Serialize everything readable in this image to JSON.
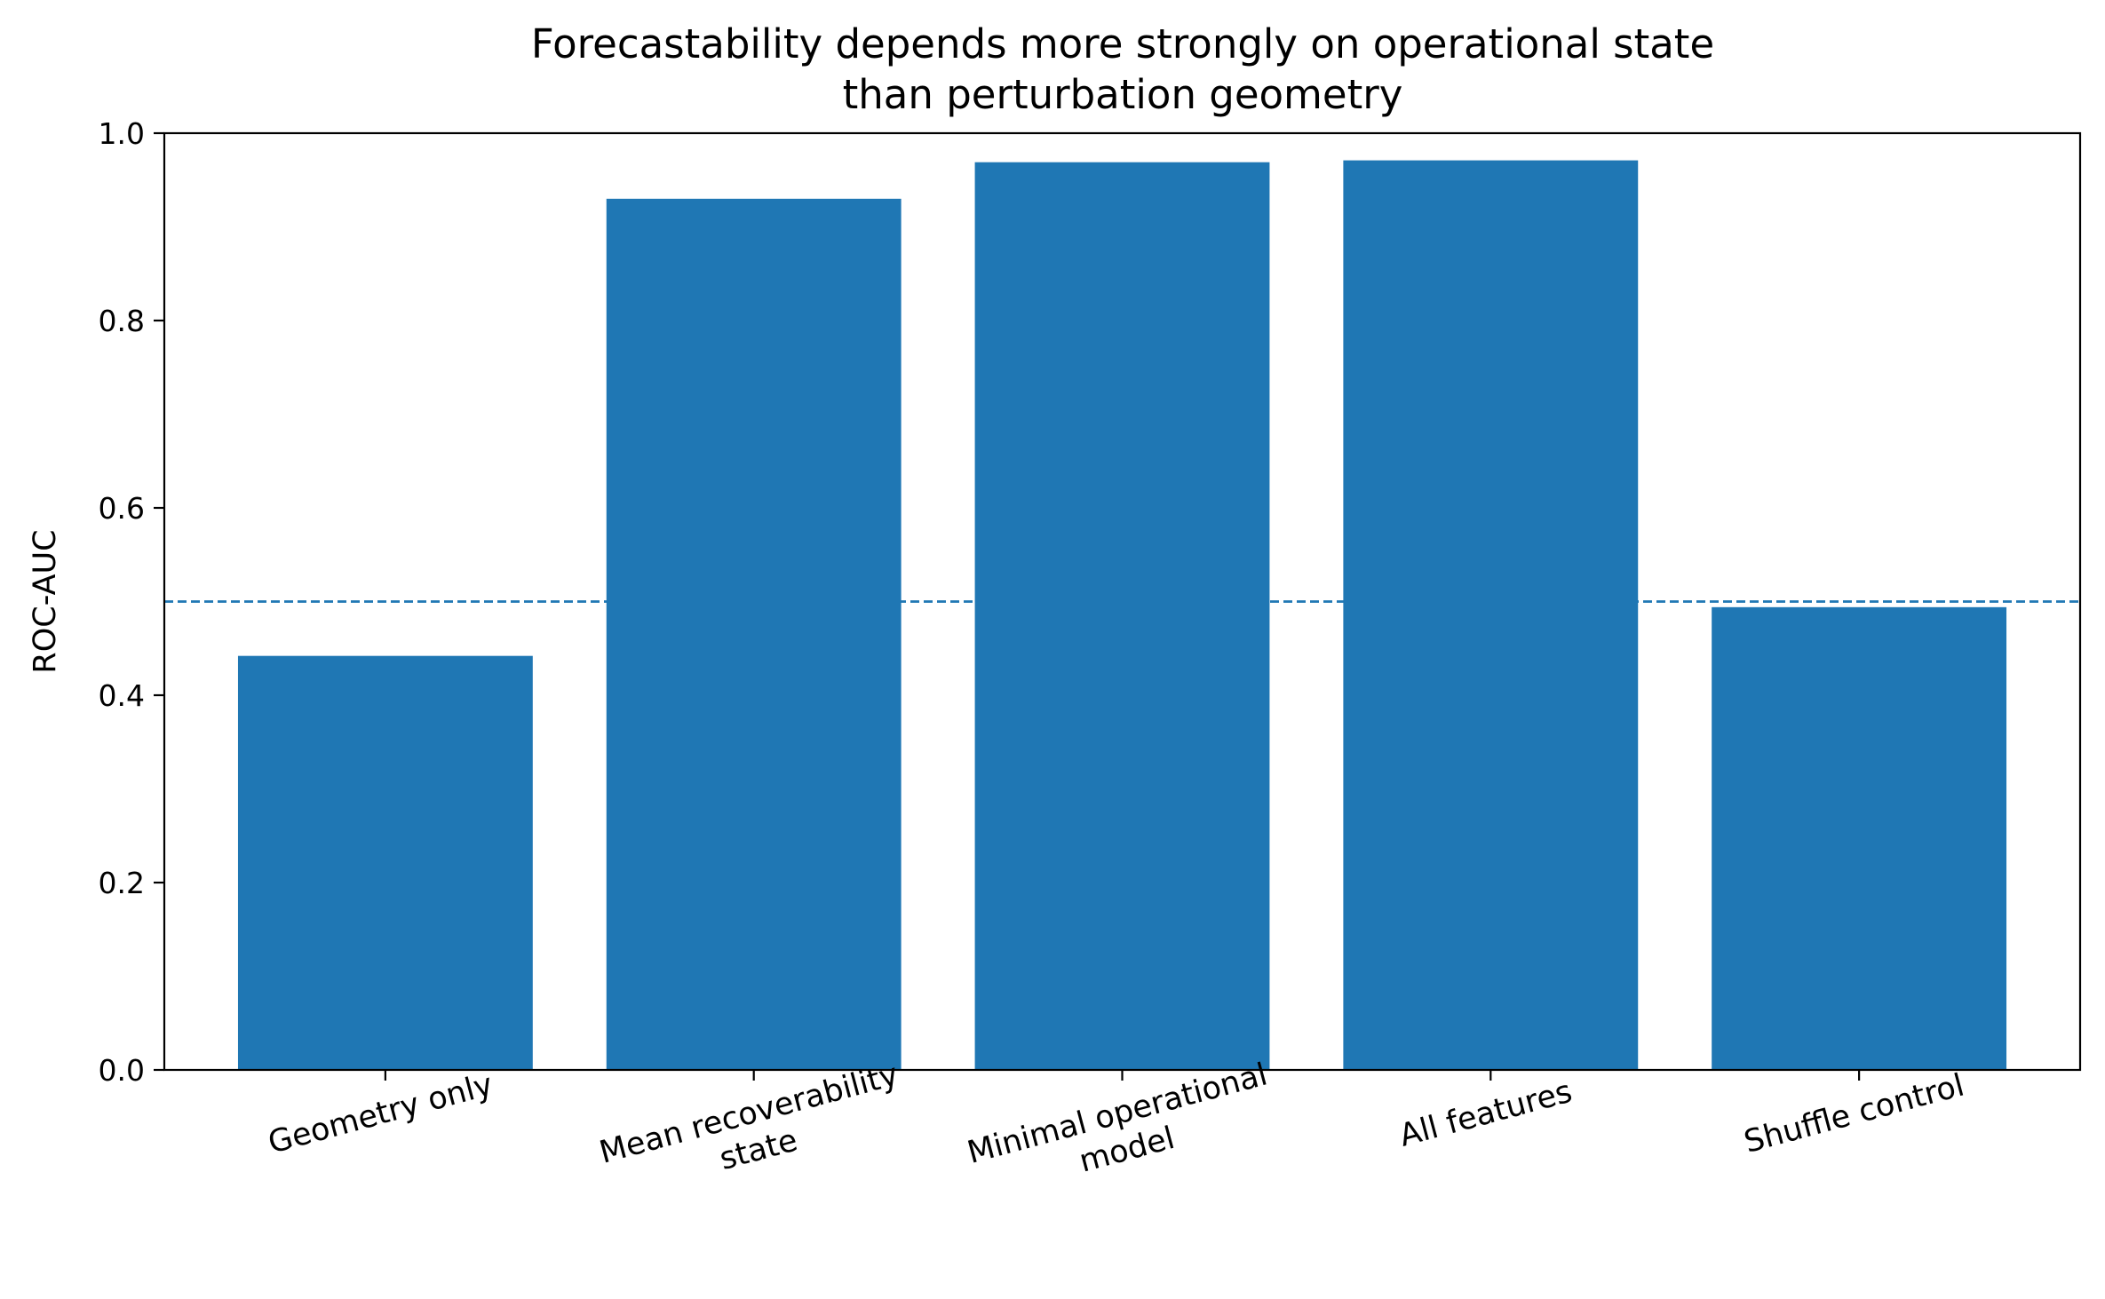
{
  "chart_data": {
    "type": "bar",
    "title_lines": [
      "Forecastability depends more strongly on operational state",
      "than perturbation geometry"
    ],
    "xlabel": "",
    "ylabel": "ROC-AUC",
    "ylim": [
      0.0,
      1.0
    ],
    "yticks": [
      "0.0",
      "0.2",
      "0.4",
      "0.6",
      "0.8",
      "1.0"
    ],
    "categories": [
      [
        "Geometry only"
      ],
      [
        "Mean recoverability",
        "state"
      ],
      [
        "Minimal operational",
        "model"
      ],
      [
        "All features"
      ],
      [
        "Shuffle control"
      ]
    ],
    "values": [
      0.442,
      0.93,
      0.969,
      0.971,
      0.494
    ],
    "bar_color": "#1f77b4",
    "reference_line": {
      "y": 0.5,
      "style": "dashed",
      "color": "#1f77b4"
    },
    "grid": false,
    "legend": "none"
  }
}
